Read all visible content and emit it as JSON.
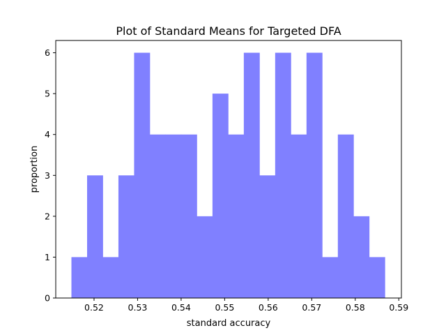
{
  "chart_data": {
    "type": "bar",
    "title": "Plot of Standard Means for Targeted DFA",
    "xlabel": "standard accuracy",
    "ylabel": "proportion",
    "xlim": [
      0.5112,
      0.5906
    ],
    "ylim": [
      0,
      6.3
    ],
    "x_ticks": [
      0.52,
      0.53,
      0.54,
      0.55,
      0.56,
      0.57,
      0.58,
      0.59
    ],
    "x_tick_labels": [
      "0.52",
      "0.53",
      "0.54",
      "0.55",
      "0.56",
      "0.57",
      "0.58",
      "0.59"
    ],
    "y_ticks": [
      0,
      1,
      2,
      3,
      4,
      5,
      6
    ],
    "y_tick_labels": [
      "0",
      "1",
      "2",
      "3",
      "4",
      "5",
      "6"
    ],
    "bin_start": 0.5148,
    "bin_width": 0.0036,
    "values": [
      1,
      3,
      1,
      3,
      6,
      4,
      4,
      4,
      2,
      5,
      4,
      6,
      3,
      6,
      4,
      6,
      1,
      4,
      2,
      1
    ],
    "bar_color": "#8080ff",
    "grid": false,
    "legend": "none"
  }
}
